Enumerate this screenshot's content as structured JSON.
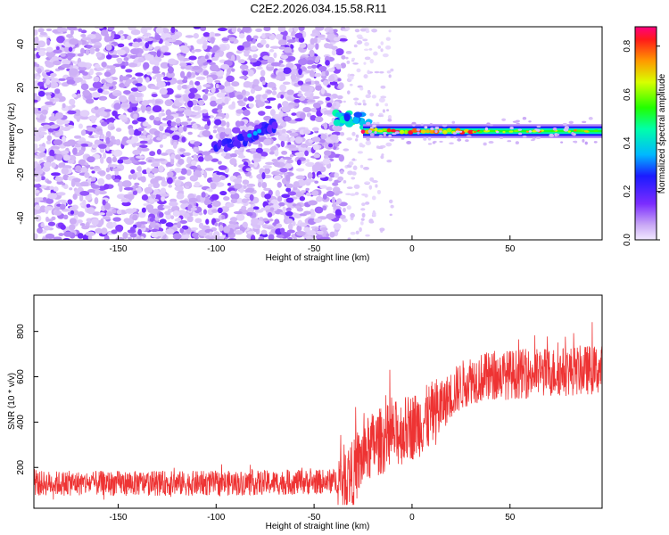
{
  "figure_title": "C2E2.2026.034.15.58.R11",
  "chart_data": [
    {
      "type": "heatmap",
      "title": "C2E2.2026.034.15.58.R11",
      "xlabel": "Height of straight line (km)",
      "ylabel": "Frequency (Hz)",
      "xlim": [
        -193,
        97
      ],
      "ylim": [
        -50,
        48
      ],
      "xticks": [
        -150,
        -100,
        -50,
        0,
        50
      ],
      "yticks": [
        -40,
        -20,
        0,
        20,
        40
      ],
      "colorbar": {
        "label": "Normalized spectral amplitude",
        "range": [
          0.0,
          0.88
        ],
        "ticks": [
          0.0,
          0.2,
          0.4,
          0.6,
          0.8
        ]
      },
      "features": [
        {
          "name": "noise",
          "x_range": [
            -193,
            -35
          ],
          "y_range": [
            -50,
            48
          ],
          "level": 0.08
        },
        {
          "name": "rising trace",
          "points": [
            [
              -100,
              -8
            ],
            [
              -90,
              -5
            ],
            [
              -82,
              -2
            ],
            [
              -76,
              1
            ],
            [
              -70,
              3
            ]
          ],
          "level": 0.15
        },
        {
          "name": "jump",
          "points": [
            [
              -37,
              6
            ],
            [
              -32,
              6
            ],
            [
              -27,
              6
            ],
            [
              -24,
              3
            ]
          ],
          "level": 0.3
        },
        {
          "name": "stable line",
          "x_range": [
            -25,
            97
          ],
          "y": 0,
          "level": 0.75
        }
      ]
    },
    {
      "type": "line",
      "title": "",
      "xlabel": "Height of straight line (km)",
      "ylabel": "SNR (10 * v/v)",
      "xlim": [
        -193,
        97
      ],
      "ylim": [
        20,
        960
      ],
      "xticks": [
        -150,
        -100,
        -50,
        0,
        50
      ],
      "yticks": [
        200,
        400,
        600,
        800
      ],
      "series": [
        {
          "name": "SNR",
          "color": "#ee3333",
          "x": [
            -193,
            -150,
            -100,
            -50,
            -38,
            -30,
            -25,
            -20,
            -15,
            -10,
            -5,
            0,
            5,
            10,
            15,
            20,
            25,
            30,
            40,
            50,
            60,
            70,
            80,
            90,
            97
          ],
          "values": [
            130,
            130,
            130,
            135,
            140,
            170,
            250,
            300,
            320,
            340,
            360,
            380,
            400,
            430,
            470,
            520,
            560,
            590,
            600,
            610,
            615,
            620,
            625,
            630,
            630
          ]
        }
      ]
    }
  ]
}
